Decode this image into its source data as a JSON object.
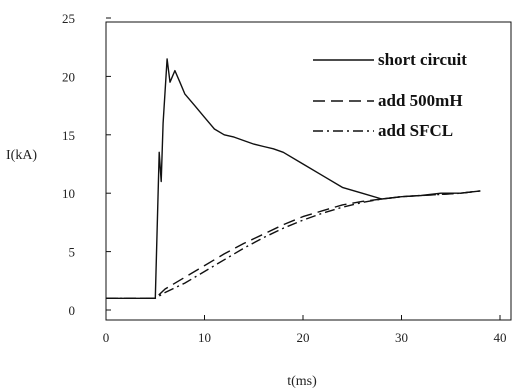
{
  "chart_data": {
    "type": "line",
    "xlabel": "t(ms)",
    "ylabel": "I(kA)",
    "xlim": [
      0,
      40
    ],
    "ylim": [
      0,
      25
    ],
    "x_ticks": [
      0,
      10,
      20,
      30,
      40
    ],
    "y_ticks": [
      0,
      5,
      10,
      15,
      20,
      25
    ],
    "grid": false,
    "legend_position": "top-right",
    "series": [
      {
        "name": "short circuit",
        "style": "solid",
        "color": "#111111",
        "x": [
          0,
          5,
          5.4,
          5.6,
          5.8,
          6.2,
          6.5,
          7,
          7.5,
          8,
          9,
          10,
          11,
          12,
          13,
          14,
          15,
          16,
          17,
          18,
          20,
          22,
          24,
          26,
          28,
          30,
          32,
          34,
          36,
          38
        ],
        "y": [
          1,
          1,
          13.5,
          11,
          16,
          21.5,
          19.5,
          20.5,
          19.5,
          18.5,
          17.5,
          16.5,
          15.5,
          15,
          14.8,
          14.5,
          14.2,
          14,
          13.8,
          13.5,
          12.5,
          11.5,
          10.5,
          10,
          9.5,
          9.7,
          9.8,
          10,
          10,
          10.2
        ]
      },
      {
        "name": "add 500mH",
        "style": "dashed",
        "color": "#111111",
        "x": [
          0,
          5,
          6,
          8,
          10,
          12,
          14,
          16,
          18,
          20,
          22,
          24,
          26,
          28,
          30,
          32,
          34,
          36,
          38
        ],
        "y": [
          1,
          1,
          1.8,
          2.8,
          3.8,
          4.8,
          5.7,
          6.5,
          7.3,
          8,
          8.5,
          9,
          9.3,
          9.5,
          9.7,
          9.8,
          9.9,
          10,
          10.2
        ]
      },
      {
        "name": "add SFCL",
        "style": "dashdot",
        "color": "#111111",
        "x": [
          0,
          5,
          6,
          8,
          10,
          12,
          14,
          16,
          18,
          20,
          22,
          24,
          26,
          28,
          30,
          32,
          34,
          36,
          38
        ],
        "y": [
          1,
          1,
          1.5,
          2.3,
          3.3,
          4.3,
          5.3,
          6.2,
          7,
          7.7,
          8.3,
          8.8,
          9.2,
          9.5,
          9.7,
          9.8,
          9.9,
          10,
          10.2
        ]
      }
    ]
  }
}
